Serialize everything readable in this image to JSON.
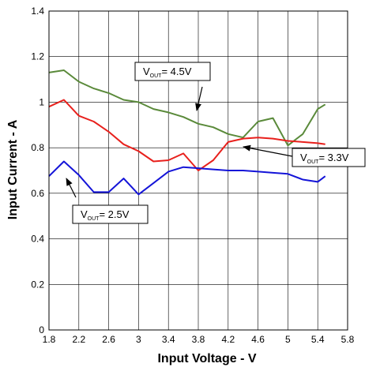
{
  "chart_data": {
    "type": "line",
    "xlabel": "Input Voltage - V",
    "ylabel": "Input Current - A",
    "xlim": [
      1.8,
      5.8
    ],
    "ylim": [
      0,
      1.4
    ],
    "x_ticks": [
      "1.8",
      "2.2",
      "2.6",
      "3",
      "3.4",
      "3.8",
      "4.2",
      "4.6",
      "5",
      "5.4",
      "5.8"
    ],
    "y_ticks": [
      "0",
      "0.2",
      "0.4",
      "0.6",
      "0.8",
      "1",
      "1.2",
      "1.4"
    ],
    "grid": true,
    "series": [
      {
        "color": "#5a8a3a",
        "x": [
          1.8,
          2.0,
          2.2,
          2.4,
          2.6,
          2.8,
          3.0,
          3.2,
          3.4,
          3.6,
          3.8,
          4.0,
          4.2,
          4.4,
          4.6,
          4.8,
          5.0,
          5.2,
          5.4,
          5.5
        ],
        "y": [
          1.13,
          1.14,
          1.09,
          1.06,
          1.04,
          1.01,
          1.0,
          0.97,
          0.955,
          0.935,
          0.905,
          0.89,
          0.86,
          0.845,
          0.915,
          0.93,
          0.81,
          0.86,
          0.97,
          0.99
        ]
      },
      {
        "color": "#e8201c",
        "x": [
          1.8,
          2.0,
          2.2,
          2.4,
          2.6,
          2.8,
          3.0,
          3.2,
          3.4,
          3.6,
          3.8,
          4.0,
          4.2,
          4.4,
          4.6,
          4.8,
          5.0,
          5.2,
          5.4,
          5.5
        ],
        "y": [
          0.98,
          1.01,
          0.94,
          0.915,
          0.87,
          0.815,
          0.785,
          0.74,
          0.745,
          0.775,
          0.7,
          0.745,
          0.825,
          0.84,
          0.845,
          0.84,
          0.83,
          0.825,
          0.82,
          0.815
        ]
      },
      {
        "color": "#1414d8",
        "x": [
          1.8,
          2.0,
          2.2,
          2.4,
          2.6,
          2.8,
          3.0,
          3.2,
          3.4,
          3.6,
          3.8,
          4.0,
          4.2,
          4.4,
          4.6,
          4.8,
          5.0,
          5.2,
          5.4,
          5.5
        ],
        "y": [
          0.675,
          0.74,
          0.68,
          0.605,
          0.605,
          0.665,
          0.595,
          0.645,
          0.695,
          0.715,
          0.71,
          0.705,
          0.7,
          0.7,
          0.695,
          0.69,
          0.685,
          0.66,
          0.65,
          0.675
        ]
      }
    ],
    "annotations": [
      {
        "main": "V",
        "sub": "OUT",
        "rest": "= 4.5V",
        "color": "#5a8a3a"
      },
      {
        "main": "V",
        "sub": "OUT",
        "rest": "= 3.3V",
        "color": "#e8201c"
      },
      {
        "main": "V",
        "sub": "OUT",
        "rest": "= 2.5V",
        "color": "#1414d8"
      }
    ]
  }
}
